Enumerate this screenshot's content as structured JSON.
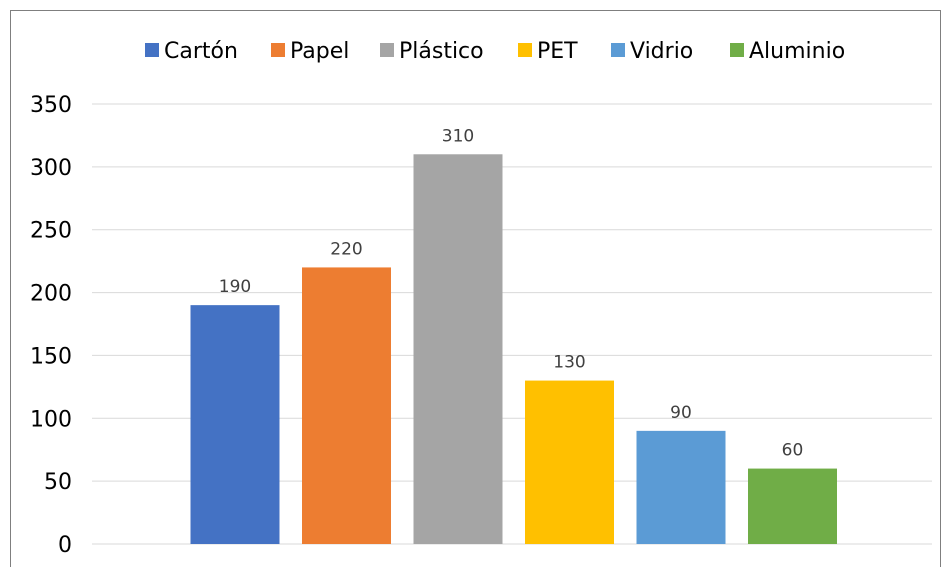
{
  "chart_data": {
    "type": "bar",
    "categories": [
      "Cartón",
      "Papel",
      "Plástico",
      "PET",
      "Vidrio",
      "Aluminio"
    ],
    "values": [
      190,
      220,
      310,
      130,
      90,
      60
    ],
    "colors": [
      "#4472c4",
      "#ed7d31",
      "#a5a5a5",
      "#ffc000",
      "#5b9bd5",
      "#70ad47"
    ],
    "data_labels": [
      "190",
      "220",
      "310",
      "130",
      "90",
      "60"
    ],
    "title": "",
    "xlabel": "",
    "ylabel": "",
    "ylim": [
      0,
      350
    ],
    "yticks": [
      "0",
      "50",
      "100",
      "150",
      "200",
      "250",
      "300",
      "350"
    ],
    "grid": true,
    "legend_position": "top",
    "legend": [
      "Cartón",
      "Papel",
      "Plástico",
      "PET",
      "Vidrio",
      "Aluminio"
    ]
  }
}
